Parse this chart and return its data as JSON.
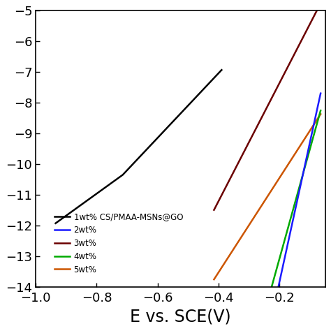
{
  "xlim": [
    -1.0,
    -0.05
  ],
  "ylim": [
    -14,
    -5
  ],
  "xlabel": "E vs. SCE(V)",
  "xticks": [
    -1.0,
    -0.8,
    -0.6,
    -0.4,
    -0.2
  ],
  "yticks": [
    -14,
    -13,
    -12,
    -11,
    -10,
    -9,
    -8,
    -7,
    -6,
    -5
  ],
  "legend": [
    {
      "label": "1wt% CS/PMAA-MSNs@GO",
      "color": "#000000"
    },
    {
      "label": "2wt%",
      "color": "#1a1aff"
    },
    {
      "label": "3wt%",
      "color": "#6b0000"
    },
    {
      "label": "4wt%",
      "color": "#00aa00"
    },
    {
      "label": "5wt%",
      "color": "#cc5500"
    }
  ],
  "curves": [
    {
      "key": "1wt",
      "color": "#000000",
      "ecorr": -0.715,
      "log_icorr": -10.35,
      "ba": 0.095,
      "bc": 0.14,
      "left_end_x": -0.935,
      "right_end_x": -0.39,
      "lw": 1.8
    },
    {
      "key": "3wt",
      "color": "#6b0000",
      "ecorr": -0.205,
      "log_icorr": -7.45,
      "ba": 0.052,
      "bc": 0.052,
      "left_end_x": -0.415,
      "right_end_x": -0.065,
      "lw": 1.8
    },
    {
      "key": "5wt",
      "color": "#cc5500",
      "ecorr": -0.207,
      "log_icorr": -10.55,
      "ba": 0.065,
      "bc": 0.065,
      "left_end_x": -0.415,
      "right_end_x": -0.065,
      "lw": 1.8
    },
    {
      "key": "4wt",
      "color": "#00aa00",
      "ecorr": -0.205,
      "log_icorr": -13.25,
      "ba": 0.028,
      "bc": 0.028,
      "left_end_x": -0.285,
      "right_end_x": -0.065,
      "lw": 1.8
    },
    {
      "key": "2wt",
      "color": "#1a1aff",
      "ecorr": -0.195,
      "log_icorr": -13.6,
      "ba": 0.022,
      "bc": 0.022,
      "left_end_x": -0.28,
      "right_end_x": -0.065,
      "lw": 1.8
    }
  ],
  "background": "#ffffff",
  "xlabel_fontsize": 17,
  "tick_fontsize": 13
}
